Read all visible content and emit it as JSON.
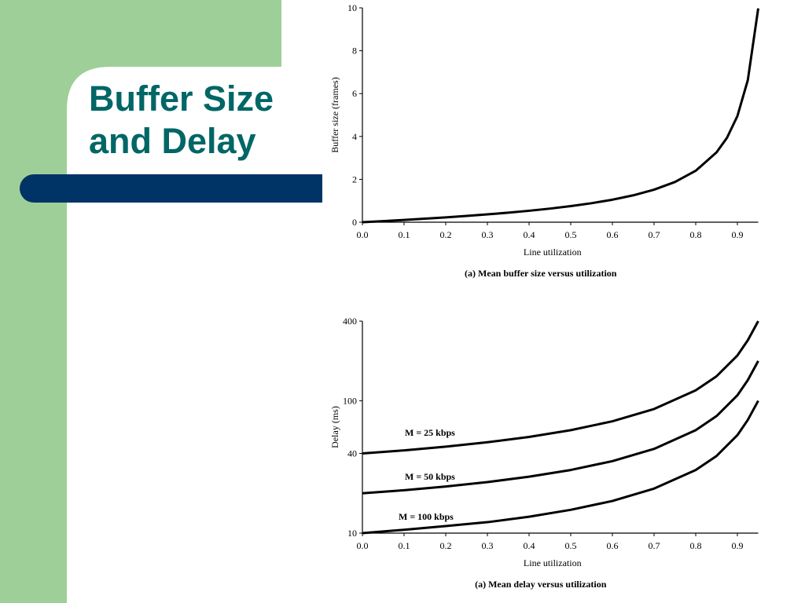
{
  "slide": {
    "title": [
      "Buffer Size",
      "and Delay"
    ]
  },
  "chart_data": [
    {
      "type": "line",
      "title": "(a) Mean buffer size versus utilization",
      "x_label": "Line utilization",
      "y_label": "Buffer size (frames)",
      "x": [
        0,
        0.05,
        0.1,
        0.15,
        0.2,
        0.25,
        0.3,
        0.35,
        0.4,
        0.45,
        0.5,
        0.55,
        0.6,
        0.65,
        0.7,
        0.75,
        0.8,
        0.85,
        0.875,
        0.9,
        0.925,
        0.95
      ],
      "values": [
        0,
        0.0513,
        0.1056,
        0.1632,
        0.225,
        0.2917,
        0.3643,
        0.4442,
        0.5333,
        0.6341,
        0.75,
        0.8861,
        1.05,
        1.2536,
        1.5167,
        1.875,
        2.4,
        3.2583,
        3.9375,
        4.95,
        6.629,
        9.975
      ],
      "color": "#000000",
      "xlim": [
        0,
        0.95
      ],
      "ylim": [
        0,
        10
      ],
      "xticks": [
        {
          "value": 0,
          "label": "0.0"
        },
        0.1,
        0.2,
        0.3,
        0.4,
        0.5,
        0.6,
        0.7,
        0.8,
        0.9
      ],
      "yticks": [
        0,
        2,
        4,
        6,
        8,
        10
      ]
    },
    {
      "type": "line",
      "title": "(a) Mean delay versus utilization",
      "x_label": "Line utilization",
      "y_label": "Delay (ms)",
      "log_y": true,
      "x": [
        0,
        0.1,
        0.2,
        0.3,
        0.4,
        0.5,
        0.6,
        0.7,
        0.8,
        0.85,
        0.9,
        0.925,
        0.95
      ],
      "series": [
        {
          "name": "M = 25 kbps",
          "color": "#000000",
          "values": [
            40,
            42.2,
            45,
            48.6,
            53.3,
            60,
            70,
            86.7,
            120,
            153.3,
            220,
            286.7,
            400
          ]
        },
        {
          "name": "M = 50 kbps",
          "color": "#000000",
          "values": [
            20,
            21.1,
            22.5,
            24.3,
            26.7,
            30,
            35,
            43.3,
            60,
            76.7,
            110,
            143.3,
            200
          ]
        },
        {
          "name": "M = 100 kbps",
          "color": "#000000",
          "values": [
            10,
            10.6,
            11.3,
            12.1,
            13.3,
            15,
            17.5,
            21.7,
            30,
            38.3,
            55,
            71.7,
            100
          ]
        }
      ],
      "xlim": [
        0,
        0.95
      ],
      "ylim": [
        10,
        400
      ],
      "xticks": [
        {
          "value": 0,
          "label": "0.0"
        },
        0.1,
        0.2,
        0.3,
        0.4,
        0.5,
        0.6,
        0.7,
        0.8,
        0.9
      ],
      "yticks": [
        10,
        40,
        100,
        400
      ]
    }
  ]
}
